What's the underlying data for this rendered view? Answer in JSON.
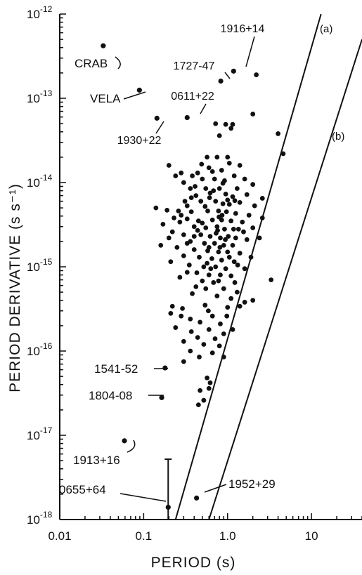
{
  "chart_data": {
    "type": "scatter",
    "title": "",
    "xlabel": "PERIOD (s)",
    "ylabel": "PERIOD DERIVATIVE (s s⁻¹)",
    "x_scale": "log",
    "y_scale": "log",
    "xlim": [
      0.01,
      40
    ],
    "ylim": [
      1e-18,
      1e-12
    ],
    "grid": false,
    "x_ticks": [
      {
        "value": 0.01,
        "label": "0.01"
      },
      {
        "value": 0.1,
        "label": "0.1"
      },
      {
        "value": 1,
        "label": "1.0"
      },
      {
        "value": 10,
        "label": "10"
      }
    ],
    "y_ticks": [
      {
        "value": 1e-12,
        "base": "10",
        "exp": "-12"
      },
      {
        "value": 1e-13,
        "base": "10",
        "exp": "-13"
      },
      {
        "value": 1e-14,
        "base": "10",
        "exp": "-14"
      },
      {
        "value": 1e-15,
        "base": "10",
        "exp": "-15"
      },
      {
        "value": 1e-16,
        "base": "10",
        "exp": "-16"
      },
      {
        "value": 1e-17,
        "base": "10",
        "exp": "-17"
      },
      {
        "value": 1e-18,
        "base": "10",
        "exp": "-18"
      }
    ],
    "lines": [
      {
        "label": "(a)",
        "points": [
          [
            0.24,
            1e-18
          ],
          [
            13,
            1e-12
          ]
        ]
      },
      {
        "label": "(b)",
        "points": [
          [
            0.6,
            1e-18
          ],
          [
            40,
            5e-13
          ]
        ]
      }
    ],
    "named_pulsars": [
      {
        "name": "CRAB",
        "period": 0.033,
        "pdot": 4.2e-13
      },
      {
        "name": "VELA",
        "period": 0.089,
        "pdot": 1.25e-13
      },
      {
        "name": "1916+14",
        "period": 1.18,
        "pdot": 2.1e-13
      },
      {
        "name": "1727-47",
        "period": 0.83,
        "pdot": 1.6e-13
      },
      {
        "name": "0611+22",
        "period": 0.33,
        "pdot": 5.9e-14
      },
      {
        "name": "1930+22",
        "period": 0.144,
        "pdot": 5.8e-14
      },
      {
        "name": "1541-52",
        "period": 0.18,
        "pdot": 6.3e-17
      },
      {
        "name": "1804-08",
        "period": 0.164,
        "pdot": 2.8e-17
      },
      {
        "name": "1913+16",
        "period": 0.059,
        "pdot": 8.6e-18
      },
      {
        "name": "0655+64",
        "period": 0.196,
        "pdot": 1.4e-18
      },
      {
        "name": "1952+29",
        "period": 0.427,
        "pdot": 1.8e-18
      }
    ],
    "error_bars": [
      {
        "period": 0.196,
        "pdot_low": 1e-18,
        "pdot_high": 5.2e-18
      }
    ],
    "points": [
      [
        2.2,
        1.9e-13
      ],
      [
        2.0,
        6.5e-14
      ],
      [
        4.0,
        3.8e-14
      ],
      [
        4.6,
        2.2e-14
      ],
      [
        0.72,
        5e-14
      ],
      [
        0.8,
        3.6e-14
      ],
      [
        1.1,
        4.4e-14
      ],
      [
        1.15,
        4.9e-14
      ],
      [
        0.95,
        4.9e-14
      ],
      [
        0.57,
        2e-14
      ],
      [
        0.75,
        2e-14
      ],
      [
        1.0,
        2e-14
      ],
      [
        1.4,
        1.6e-14
      ],
      [
        0.85,
        1.4e-14
      ],
      [
        0.2,
        1.6e-14
      ],
      [
        0.28,
        1.3e-14
      ],
      [
        0.44,
        1.3e-14
      ],
      [
        0.6,
        1.5e-14
      ],
      [
        1.2,
        1.2e-14
      ],
      [
        0.3,
        1e-14
      ],
      [
        0.38,
        1.2e-14
      ],
      [
        0.5,
        1.1e-14
      ],
      [
        0.7,
        1.1e-14
      ],
      [
        0.92,
        1.05e-14
      ],
      [
        1.6,
        1.1e-14
      ],
      [
        2.0,
        9.5e-15
      ],
      [
        0.36,
        8.5e-15
      ],
      [
        0.55,
        8.5e-15
      ],
      [
        0.8,
        8.5e-15
      ],
      [
        1.3,
        8.5e-15
      ],
      [
        0.42,
        7e-15
      ],
      [
        0.62,
        7.5e-15
      ],
      [
        0.95,
        7.3e-15
      ],
      [
        1.15,
        6.8e-15
      ],
      [
        1.7,
        7.2e-15
      ],
      [
        2.6,
        6.5e-15
      ],
      [
        0.31,
        6e-15
      ],
      [
        0.48,
        6e-15
      ],
      [
        0.72,
        6e-15
      ],
      [
        0.88,
        5.6e-15
      ],
      [
        1.05,
        5.5e-15
      ],
      [
        1.4,
        5.8e-15
      ],
      [
        2.1,
        5.3e-15
      ],
      [
        0.14,
        5e-15
      ],
      [
        0.19,
        4.7e-15
      ],
      [
        0.26,
        4.6e-15
      ],
      [
        0.37,
        4.5e-15
      ],
      [
        0.58,
        4.6e-15
      ],
      [
        0.78,
        4.6e-15
      ],
      [
        0.97,
        4.5e-15
      ],
      [
        1.25,
        4.3e-15
      ],
      [
        1.8,
        4.1e-15
      ],
      [
        2.6,
        3.8e-15
      ],
      [
        0.23,
        3.8e-15
      ],
      [
        0.33,
        3.7e-15
      ],
      [
        0.45,
        3.5e-15
      ],
      [
        0.66,
        3.6e-15
      ],
      [
        0.85,
        3.6e-15
      ],
      [
        1.1,
        3.5e-15
      ],
      [
        1.5,
        3.4e-15
      ],
      [
        0.17,
        3.2e-15
      ],
      [
        0.4,
        3e-15
      ],
      [
        0.55,
        2.9e-15
      ],
      [
        0.75,
        3e-15
      ],
      [
        0.92,
        2.8e-15
      ],
      [
        1.35,
        2.8e-15
      ],
      [
        2.0,
        2.9e-15
      ],
      [
        0.22,
        2.6e-15
      ],
      [
        0.3,
        2.4e-15
      ],
      [
        0.48,
        2.4e-15
      ],
      [
        0.62,
        2.3e-15
      ],
      [
        0.82,
        2.2e-15
      ],
      [
        1.02,
        2.3e-15
      ],
      [
        1.25,
        2.2e-15
      ],
      [
        1.7,
        2.1e-15
      ],
      [
        2.4,
        2.2e-15
      ],
      [
        0.36,
        2e-15
      ],
      [
        0.53,
        1.9e-15
      ],
      [
        0.7,
        1.9e-15
      ],
      [
        0.9,
        1.8e-15
      ],
      [
        1.15,
        1.8e-15
      ],
      [
        0.25,
        1.7e-15
      ],
      [
        0.4,
        1.6e-15
      ],
      [
        0.58,
        1.55e-15
      ],
      [
        0.78,
        1.5e-15
      ],
      [
        1.0,
        1.5e-15
      ],
      [
        1.4,
        1.45e-15
      ],
      [
        1.9,
        1.3e-15
      ],
      [
        0.3,
        1.35e-15
      ],
      [
        0.46,
        1.3e-15
      ],
      [
        0.65,
        1.25e-15
      ],
      [
        0.85,
        1.2e-15
      ],
      [
        1.2,
        1.15e-15
      ],
      [
        0.21,
        1.15e-15
      ],
      [
        0.35,
        1.05e-15
      ],
      [
        0.52,
        1e-15
      ],
      [
        0.72,
        1e-15
      ],
      [
        0.95,
        9.5e-16
      ],
      [
        1.6,
        9.5e-16
      ],
      [
        0.43,
        8.5e-16
      ],
      [
        0.6,
        8e-16
      ],
      [
        0.82,
        8e-16
      ],
      [
        1.1,
        7.8e-16
      ],
      [
        0.27,
        7.5e-16
      ],
      [
        0.5,
        6.8e-16
      ],
      [
        0.68,
        6.5e-16
      ],
      [
        3.3,
        7e-16
      ],
      [
        0.55,
        5.5e-16
      ],
      [
        0.9,
        5.5e-16
      ],
      [
        1.3,
        5e-16
      ],
      [
        0.38,
        4.8e-16
      ],
      [
        0.75,
        4.5e-16
      ],
      [
        1.1,
        4.2e-16
      ],
      [
        1.6,
        3.8e-16
      ],
      [
        2.0,
        4e-16
      ],
      [
        1.4,
        3.4e-16
      ],
      [
        0.22,
        3.4e-16
      ],
      [
        0.29,
        3.2e-16
      ],
      [
        0.54,
        3.5e-16
      ],
      [
        0.21,
        2.8e-16
      ],
      [
        0.28,
        2.6e-16
      ],
      [
        0.36,
        2.4e-16
      ],
      [
        0.66,
        2.6e-16
      ],
      [
        0.98,
        2.6e-16
      ],
      [
        0.47,
        2.2e-16
      ],
      [
        0.82,
        2.1e-16
      ],
      [
        0.24,
        1.9e-16
      ],
      [
        0.37,
        1.7e-16
      ],
      [
        0.6,
        1.8e-16
      ],
      [
        0.9,
        1.6e-16
      ],
      [
        1.15,
        1.8e-16
      ],
      [
        0.44,
        1.45e-16
      ],
      [
        0.71,
        1.4e-16
      ],
      [
        0.3,
        1.3e-16
      ],
      [
        0.52,
        1.2e-16
      ],
      [
        0.8,
        1.15e-16
      ],
      [
        0.36,
        1e-16
      ],
      [
        0.66,
        9.5e-17
      ],
      [
        0.46,
        8.5e-17
      ],
      [
        0.9,
        8.5e-17
      ],
      [
        0.3,
        7.5e-17
      ],
      [
        0.57,
        4.8e-17
      ],
      [
        0.62,
        4.2e-17
      ],
      [
        0.6,
        3.6e-17
      ],
      [
        0.47,
        3.4e-17
      ],
      [
        0.52,
        2.6e-17
      ],
      [
        0.45,
        2.3e-17
      ],
      [
        0.24,
        1.2e-14
      ],
      [
        0.33,
        5.3e-15
      ],
      [
        0.41,
        9e-15
      ],
      [
        0.68,
        8e-15
      ],
      [
        0.88,
        9.8e-15
      ],
      [
        1.05,
        1.7e-14
      ],
      [
        0.5,
        3.3e-15
      ],
      [
        0.61,
        6.6e-15
      ],
      [
        0.79,
        3.9e-15
      ],
      [
        1.22,
        6.1e-15
      ],
      [
        1.55,
        2.6e-15
      ],
      [
        0.27,
        3.4e-15
      ],
      [
        0.44,
        2.7e-15
      ],
      [
        0.6,
        1.7e-15
      ],
      [
        0.76,
        2.7e-15
      ],
      [
        1.05,
        1.3e-15
      ],
      [
        0.33,
        1.9e-15
      ],
      [
        0.57,
        1.1e-15
      ],
      [
        0.81,
        1.7e-15
      ],
      [
        1.32,
        1.05e-15
      ],
      [
        0.4,
        2.3e-15
      ],
      [
        0.86,
        4.1e-15
      ],
      [
        1.0,
        6.2e-15
      ],
      [
        0.66,
        1.35e-14
      ],
      [
        0.49,
        1.65e-14
      ],
      [
        0.73,
        2.5e-15
      ],
      [
        0.94,
        2.1e-15
      ],
      [
        1.18,
        2.8e-15
      ],
      [
        0.37,
        6.6e-15
      ],
      [
        0.54,
        5.2e-15
      ],
      [
        0.63,
        9.5e-16
      ],
      [
        0.42,
        5.8e-16
      ],
      [
        1.0,
        3.3e-16
      ],
      [
        0.33,
        8.6e-16
      ],
      [
        0.78,
        6.8e-16
      ],
      [
        1.22,
        6.5e-16
      ],
      [
        0.59,
        3e-16
      ],
      [
        0.2,
        2.2e-15
      ],
      [
        0.16,
        1.8e-15
      ],
      [
        0.28,
        4.1e-15
      ]
    ]
  }
}
